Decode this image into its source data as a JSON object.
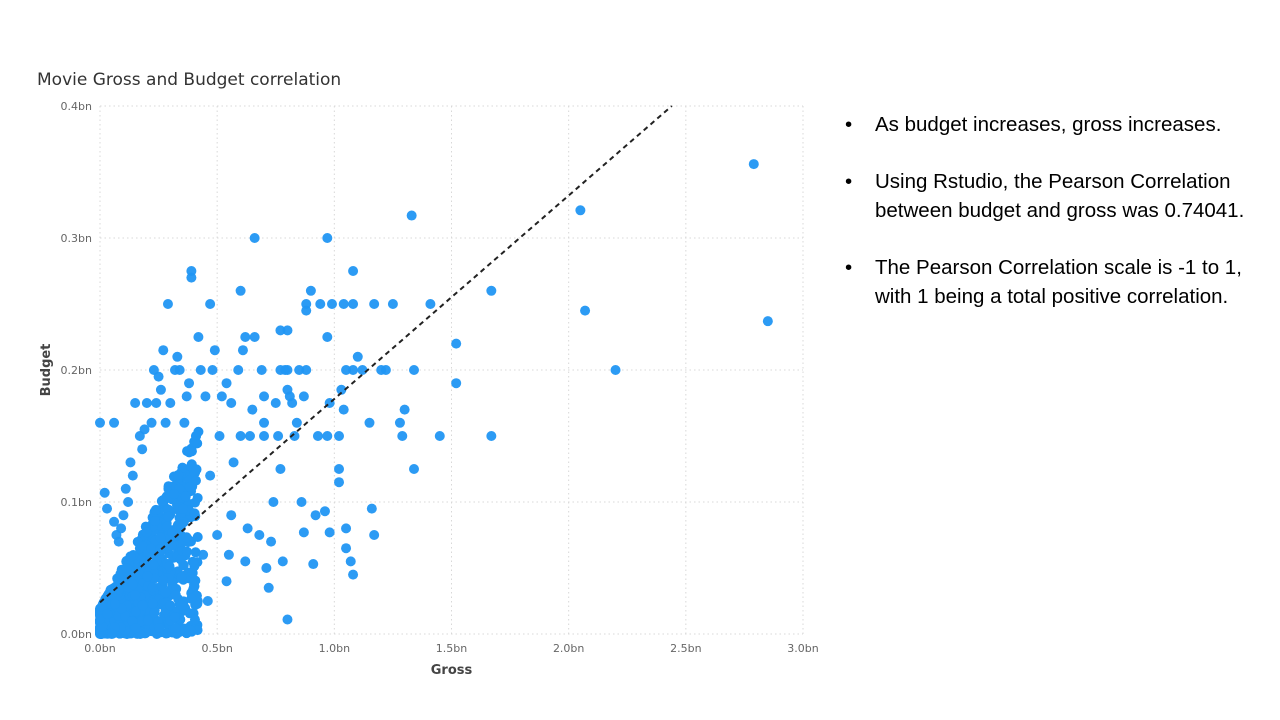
{
  "chart_data": {
    "type": "scatter",
    "title": "Movie Gross and Budget correlation",
    "xlabel": "Gross",
    "ylabel": "Budget",
    "xlim": [
      0,
      3.0
    ],
    "ylim": [
      0,
      0.4
    ],
    "x_ticks": [
      "0.0bn",
      "0.5bn",
      "1.0bn",
      "1.5bn",
      "2.0bn",
      "2.5bn",
      "3.0bn"
    ],
    "y_ticks": [
      "0.0bn",
      "0.1bn",
      "0.2bn",
      "0.3bn",
      "0.4bn"
    ],
    "grid": true,
    "point_color": "#2196f3",
    "trendline": {
      "style": "dashed",
      "color": "#222222",
      "points": [
        [
          0,
          0.024
        ],
        [
          2.44,
          0.4
        ]
      ]
    },
    "points": [
      [
        2.79,
        0.356
      ],
      [
        2.85,
        0.237
      ],
      [
        2.05,
        0.321
      ],
      [
        2.07,
        0.245
      ],
      [
        2.2,
        0.2
      ],
      [
        1.67,
        0.26
      ],
      [
        1.67,
        0.15
      ],
      [
        1.52,
        0.22
      ],
      [
        1.52,
        0.19
      ],
      [
        1.45,
        0.15
      ],
      [
        1.41,
        0.25
      ],
      [
        1.34,
        0.2
      ],
      [
        1.34,
        0.125
      ],
      [
        1.33,
        0.317
      ],
      [
        1.3,
        0.17
      ],
      [
        1.28,
        0.16
      ],
      [
        1.29,
        0.15
      ],
      [
        1.25,
        0.25
      ],
      [
        1.22,
        0.2
      ],
      [
        1.2,
        0.2
      ],
      [
        1.17,
        0.25
      ],
      [
        1.15,
        0.16
      ],
      [
        1.16,
        0.095
      ],
      [
        1.17,
        0.075
      ],
      [
        1.12,
        0.2
      ],
      [
        1.1,
        0.21
      ],
      [
        1.08,
        0.275
      ],
      [
        1.08,
        0.25
      ],
      [
        1.08,
        0.2
      ],
      [
        1.07,
        0.055
      ],
      [
        1.08,
        0.045
      ],
      [
        1.04,
        0.25
      ],
      [
        1.05,
        0.2
      ],
      [
        1.04,
        0.17
      ],
      [
        1.05,
        0.08
      ],
      [
        1.05,
        0.065
      ],
      [
        1.03,
        0.185
      ],
      [
        1.02,
        0.15
      ],
      [
        1.02,
        0.125
      ],
      [
        1.02,
        0.115
      ],
      [
        0.99,
        0.25
      ],
      [
        0.98,
        0.175
      ],
      [
        0.97,
        0.225
      ],
      [
        0.97,
        0.3
      ],
      [
        0.97,
        0.15
      ],
      [
        0.96,
        0.093
      ],
      [
        0.98,
        0.077
      ],
      [
        0.94,
        0.25
      ],
      [
        0.93,
        0.15
      ],
      [
        0.92,
        0.09
      ],
      [
        0.91,
        0.053
      ],
      [
        0.9,
        0.26
      ],
      [
        0.88,
        0.25
      ],
      [
        0.88,
        0.245
      ],
      [
        0.88,
        0.2
      ],
      [
        0.87,
        0.18
      ],
      [
        0.86,
        0.1
      ],
      [
        0.87,
        0.077
      ],
      [
        0.85,
        0.2
      ],
      [
        0.84,
        0.16
      ],
      [
        0.83,
        0.15
      ],
      [
        0.82,
        0.175
      ],
      [
        0.81,
        0.18
      ],
      [
        0.8,
        0.2
      ],
      [
        0.8,
        0.185
      ],
      [
        0.8,
        0.23
      ],
      [
        0.78,
        0.055
      ],
      [
        0.8,
        0.011
      ],
      [
        0.79,
        0.2
      ],
      [
        0.77,
        0.2
      ],
      [
        0.77,
        0.23
      ],
      [
        0.77,
        0.125
      ],
      [
        0.76,
        0.15
      ],
      [
        0.75,
        0.175
      ],
      [
        0.74,
        0.1
      ],
      [
        0.73,
        0.07
      ],
      [
        0.72,
        0.035
      ],
      [
        0.71,
        0.05
      ],
      [
        0.7,
        0.16
      ],
      [
        0.7,
        0.18
      ],
      [
        0.7,
        0.15
      ],
      [
        0.69,
        0.2
      ],
      [
        0.68,
        0.075
      ],
      [
        0.66,
        0.3
      ],
      [
        0.66,
        0.225
      ],
      [
        0.65,
        0.17
      ],
      [
        0.64,
        0.15
      ],
      [
        0.63,
        0.08
      ],
      [
        0.62,
        0.225
      ],
      [
        0.62,
        0.055
      ],
      [
        0.61,
        0.215
      ],
      [
        0.6,
        0.26
      ],
      [
        0.6,
        0.15
      ],
      [
        0.59,
        0.2
      ],
      [
        0.57,
        0.13
      ],
      [
        0.56,
        0.175
      ],
      [
        0.56,
        0.09
      ],
      [
        0.55,
        0.06
      ],
      [
        0.54,
        0.19
      ],
      [
        0.54,
        0.04
      ],
      [
        0.52,
        0.18
      ],
      [
        0.51,
        0.15
      ],
      [
        0.5,
        0.075
      ],
      [
        0.49,
        0.215
      ],
      [
        0.48,
        0.2
      ],
      [
        0.47,
        0.25
      ],
      [
        0.47,
        0.12
      ],
      [
        0.46,
        0.025
      ],
      [
        0.45,
        0.18
      ],
      [
        0.44,
        0.06
      ],
      [
        0.43,
        0.2
      ],
      [
        0.42,
        0.225
      ],
      [
        0.41,
        0.15
      ],
      [
        0.4,
        0.035
      ],
      [
        0.39,
        0.275
      ],
      [
        0.39,
        0.27
      ],
      [
        0.38,
        0.19
      ],
      [
        0.37,
        0.18
      ],
      [
        0.36,
        0.16
      ],
      [
        0.35,
        0.02
      ],
      [
        0.34,
        0.2
      ],
      [
        0.33,
        0.21
      ],
      [
        0.32,
        0.2
      ],
      [
        0.3,
        0.175
      ],
      [
        0.29,
        0.25
      ],
      [
        0.28,
        0.16
      ],
      [
        0.27,
        0.215
      ],
      [
        0.26,
        0.185
      ],
      [
        0.25,
        0.195
      ],
      [
        0.24,
        0.175
      ],
      [
        0.23,
        0.2
      ],
      [
        0.22,
        0.16
      ],
      [
        0.2,
        0.175
      ],
      [
        0.19,
        0.155
      ],
      [
        0.18,
        0.14
      ],
      [
        0.17,
        0.15
      ],
      [
        0.15,
        0.175
      ],
      [
        0.14,
        0.12
      ],
      [
        0.13,
        0.13
      ],
      [
        0.12,
        0.1
      ],
      [
        0.11,
        0.11
      ],
      [
        0.1,
        0.09
      ],
      [
        0.09,
        0.08
      ],
      [
        0.08,
        0.07
      ],
      [
        0.07,
        0.075
      ],
      [
        0.06,
        0.085
      ],
      [
        0.06,
        0.16
      ],
      [
        0.03,
        0.095
      ],
      [
        0.0,
        0.16
      ],
      [
        0.02,
        0.107
      ]
    ]
  },
  "notes": [
    "As budget increases, gross increases.",
    "Using Rstudio, the Pearson Correlation between budget and gross was 0.74041.",
    "The Pearson Correlation scale is -1 to 1, with 1 being a total positive correlation."
  ]
}
